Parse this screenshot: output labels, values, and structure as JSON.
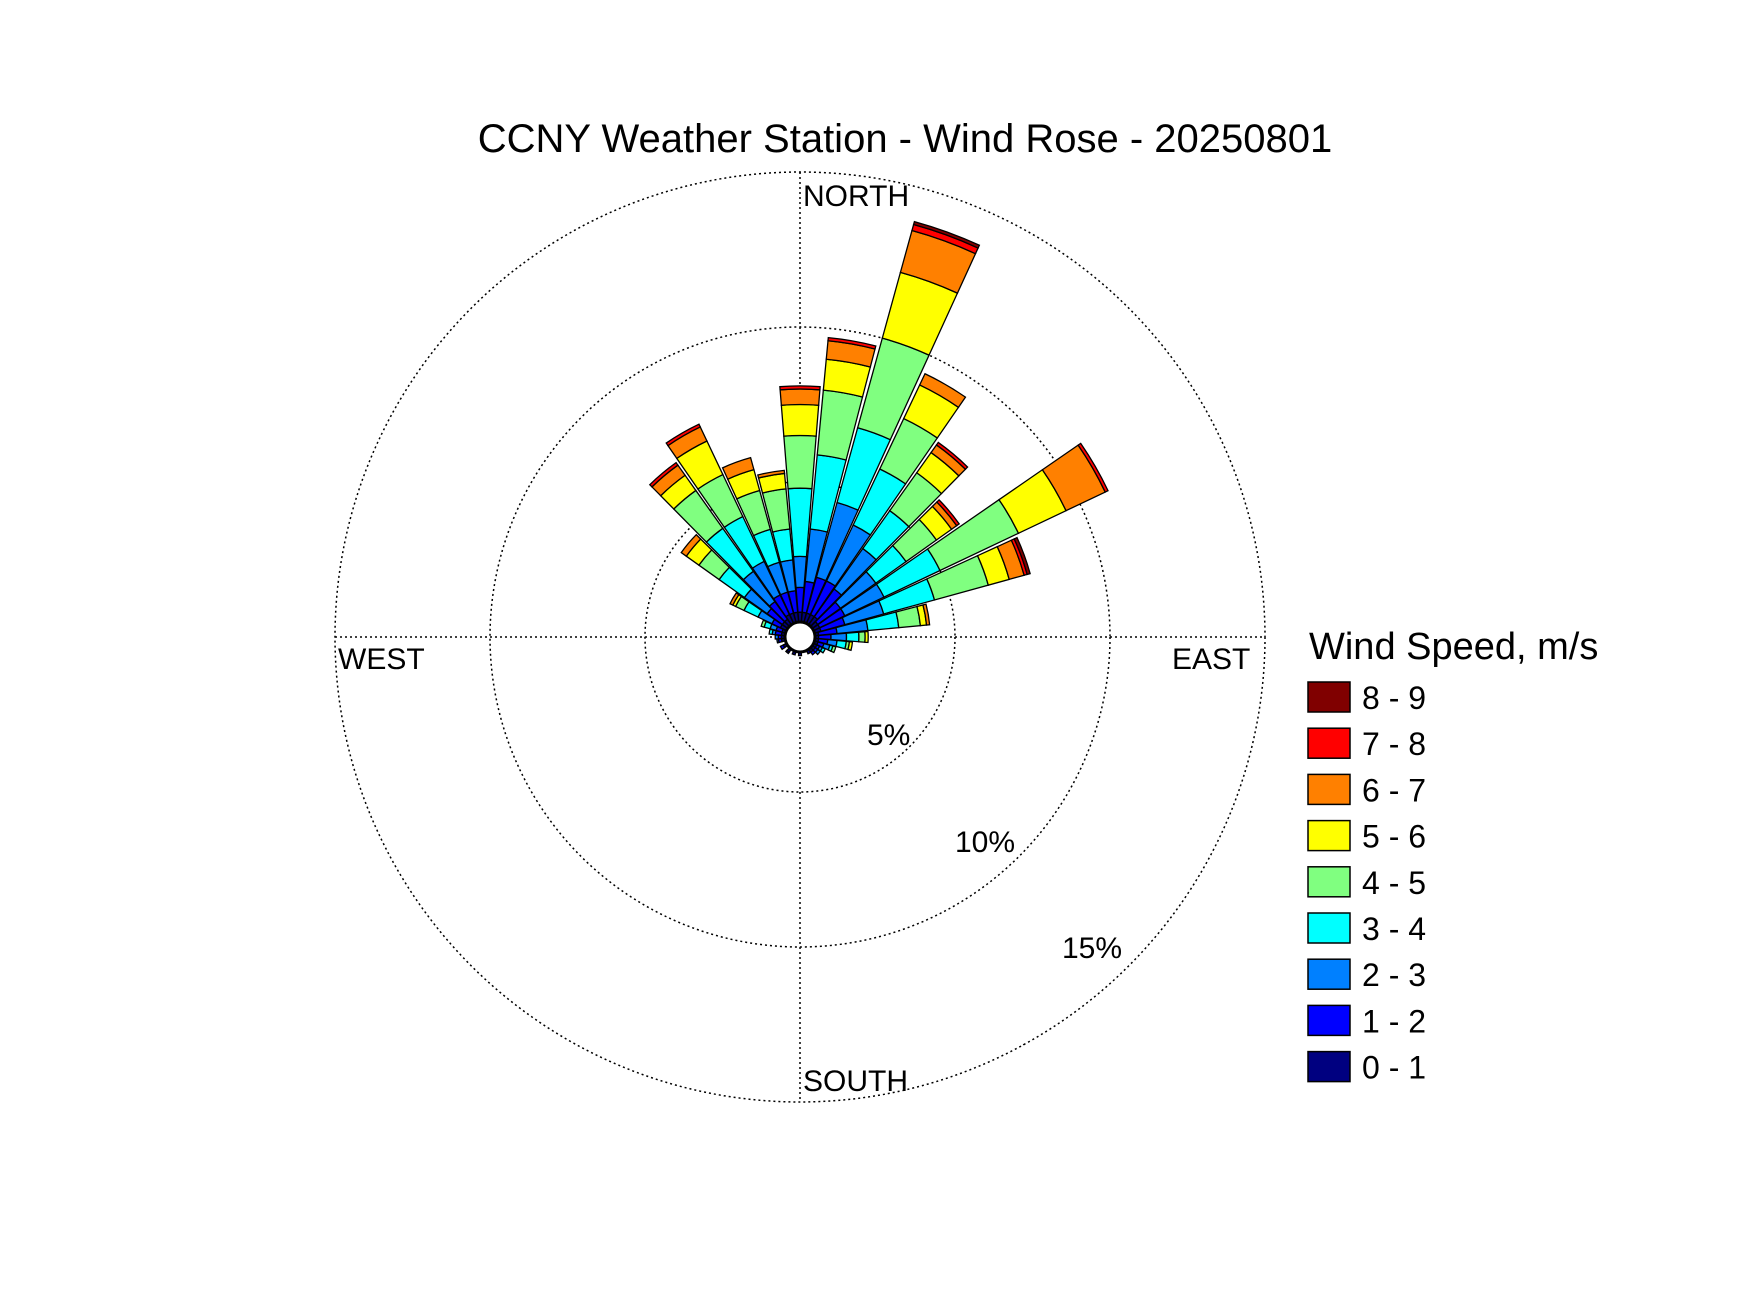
{
  "chart_data": {
    "type": "wind-rose",
    "title": "CCNY Weather Station - Wind Rose - 20250801",
    "direction_labels": {
      "north": "NORTH",
      "east": "EAST",
      "south": "SOUTH",
      "west": "WEST"
    },
    "rings": [
      {
        "value": 5,
        "label": "5%"
      },
      {
        "value": 10,
        "label": "10%"
      },
      {
        "value": 15,
        "label": "15%"
      }
    ],
    "r_max_percent": 15,
    "grid": true,
    "legend": {
      "title": "Wind Speed, m/s",
      "placement": "right",
      "bins": [
        {
          "label": "8 - 9",
          "color": "#800000"
        },
        {
          "label": "7 - 8",
          "color": "#ff0000"
        },
        {
          "label": "6 - 7",
          "color": "#ff8000"
        },
        {
          "label": "5 - 6",
          "color": "#ffff00"
        },
        {
          "label": "4 - 5",
          "color": "#80ff80"
        },
        {
          "label": "3 - 4",
          "color": "#00ffff"
        },
        {
          "label": "2 - 3",
          "color": "#0080ff"
        },
        {
          "label": "1 - 2",
          "color": "#0000ff"
        },
        {
          "label": "0 - 1",
          "color": "#000080"
        }
      ]
    },
    "speed_bins_ascending": [
      "0 - 1",
      "1 - 2",
      "2 - 3",
      "3 - 4",
      "4 - 5",
      "5 - 6",
      "6 - 7",
      "7 - 8",
      "8 - 9"
    ],
    "sectors": [
      {
        "direction_deg": 0,
        "cumulative_percent": [
          0.8,
          1.6,
          2.6,
          4.8,
          6.5,
          7.5,
          8.0,
          8.1,
          8.1
        ]
      },
      {
        "direction_deg": 10,
        "cumulative_percent": [
          0.8,
          1.8,
          3.5,
          5.9,
          8.0,
          9.0,
          9.6,
          9.7,
          9.7
        ]
      },
      {
        "direction_deg": 20,
        "cumulative_percent": [
          0.8,
          2.0,
          4.5,
          7.0,
          10.0,
          12.2,
          13.6,
          13.8,
          13.9
        ]
      },
      {
        "direction_deg": 30,
        "cumulative_percent": [
          0.8,
          2.0,
          4.0,
          6.0,
          7.8,
          9.0,
          9.4,
          9.4,
          9.4
        ]
      },
      {
        "direction_deg": 40,
        "cumulative_percent": [
          0.8,
          1.9,
          3.5,
          5.0,
          6.5,
          7.3,
          7.6,
          7.7,
          7.7
        ]
      },
      {
        "direction_deg": 50,
        "cumulative_percent": [
          0.7,
          1.6,
          3.0,
          4.2,
          5.4,
          6.0,
          6.2,
          6.3,
          6.3
        ]
      },
      {
        "direction_deg": 60,
        "cumulative_percent": [
          0.7,
          1.6,
          3.0,
          5.0,
          7.8,
          9.5,
          10.9,
          11.0,
          11.0
        ]
      },
      {
        "direction_deg": 70,
        "cumulative_percent": [
          0.7,
          1.5,
          2.8,
          4.5,
          6.3,
          7.0,
          7.5,
          7.6,
          7.7
        ]
      },
      {
        "direction_deg": 80,
        "cumulative_percent": [
          0.6,
          1.2,
          2.2,
          3.2,
          3.9,
          4.1,
          4.2,
          4.2,
          4.2
        ]
      },
      {
        "direction_deg": 90,
        "cumulative_percent": [
          0.6,
          1.0,
          1.5,
          1.9,
          2.1,
          2.2,
          2.2,
          2.2,
          2.2
        ]
      },
      {
        "direction_deg": 100,
        "cumulative_percent": [
          0.6,
          0.9,
          1.2,
          1.5,
          1.6,
          1.7,
          1.7,
          1.7,
          1.7
        ]
      },
      {
        "direction_deg": 110,
        "cumulative_percent": [
          0.6,
          0.8,
          1.0,
          1.1,
          1.2,
          1.2,
          1.2,
          1.2,
          1.2
        ]
      },
      {
        "direction_deg": 120,
        "cumulative_percent": [
          0.6,
          0.7,
          0.8,
          0.9,
          0.9,
          0.9,
          0.9,
          0.9,
          0.9
        ]
      },
      {
        "direction_deg": 130,
        "cumulative_percent": [
          0.6,
          0.7,
          0.8,
          0.8,
          0.8,
          0.8,
          0.8,
          0.8,
          0.8
        ]
      },
      {
        "direction_deg": 140,
        "cumulative_percent": [
          0.6,
          0.7,
          0.7,
          0.7,
          0.7,
          0.7,
          0.7,
          0.7,
          0.7
        ]
      },
      {
        "direction_deg": 150,
        "cumulative_percent": [
          0.6,
          0.6,
          0.6,
          0.6,
          0.6,
          0.6,
          0.6,
          0.6,
          0.6
        ]
      },
      {
        "direction_deg": 180,
        "cumulative_percent": [
          0.6,
          0.6,
          0.6,
          0.6,
          0.6,
          0.6,
          0.6,
          0.6,
          0.6
        ]
      },
      {
        "direction_deg": 200,
        "cumulative_percent": [
          0.6,
          0.6,
          0.6,
          0.6,
          0.6,
          0.6,
          0.6,
          0.6,
          0.6
        ]
      },
      {
        "direction_deg": 220,
        "cumulative_percent": [
          0.6,
          0.65,
          0.65,
          0.65,
          0.65,
          0.65,
          0.65,
          0.65,
          0.65
        ]
      },
      {
        "direction_deg": 240,
        "cumulative_percent": [
          0.6,
          0.7,
          0.7,
          0.7,
          0.7,
          0.7,
          0.7,
          0.7,
          0.7
        ]
      },
      {
        "direction_deg": 260,
        "cumulative_percent": [
          0.6,
          0.7,
          0.75,
          0.75,
          0.75,
          0.75,
          0.75,
          0.75,
          0.75
        ]
      },
      {
        "direction_deg": 270,
        "cumulative_percent": [
          0.6,
          0.7,
          0.8,
          0.8,
          0.8,
          0.8,
          0.8,
          0.8,
          0.8
        ]
      },
      {
        "direction_deg": 280,
        "cumulative_percent": [
          0.6,
          0.8,
          0.9,
          1.0,
          1.0,
          1.0,
          1.0,
          1.0,
          1.0
        ]
      },
      {
        "direction_deg": 290,
        "cumulative_percent": [
          0.6,
          0.8,
          1.0,
          1.2,
          1.3,
          1.3,
          1.3,
          1.3,
          1.3
        ]
      },
      {
        "direction_deg": 300,
        "cumulative_percent": [
          0.7,
          1.0,
          1.5,
          2.0,
          2.3,
          2.4,
          2.5,
          2.5,
          2.5
        ]
      },
      {
        "direction_deg": 310,
        "cumulative_percent": [
          0.7,
          1.3,
          2.2,
          3.2,
          4.0,
          4.5,
          4.7,
          4.7,
          4.7
        ]
      },
      {
        "direction_deg": 320,
        "cumulative_percent": [
          0.7,
          1.4,
          2.6,
          4.3,
          5.8,
          6.4,
          6.8,
          6.9,
          6.9
        ]
      },
      {
        "direction_deg": 330,
        "cumulative_percent": [
          0.8,
          1.5,
          2.7,
          4.3,
          5.8,
          7.0,
          7.5,
          7.6,
          7.6
        ]
      },
      {
        "direction_deg": 340,
        "cumulative_percent": [
          0.8,
          1.5,
          2.5,
          3.6,
          4.9,
          5.6,
          6.0,
          6.0,
          6.0
        ]
      },
      {
        "direction_deg": 350,
        "cumulative_percent": [
          0.8,
          1.5,
          2.5,
          3.5,
          4.8,
          5.3,
          5.4,
          5.4,
          5.4
        ]
      }
    ]
  }
}
